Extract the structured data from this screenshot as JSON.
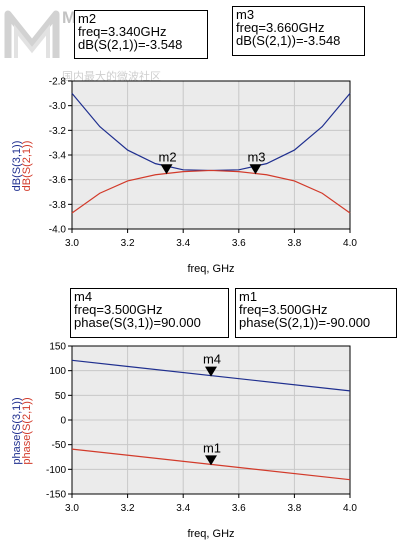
{
  "watermark": {
    "brand": "MicroNet",
    "subtitle": "国内最大的微波社区"
  },
  "markers": {
    "m2": {
      "name": "m2",
      "freq": "freq=3.340GHz",
      "meas": "dB(S(2,1))=-3.548"
    },
    "m3": {
      "name": "m3",
      "freq": "freq=3.660GHz",
      "meas": "dB(S(2,1))=-3.548"
    },
    "m4": {
      "name": "m4",
      "freq": "freq=3.500GHz",
      "meas": "phase(S(3,1))=90.000"
    },
    "m1": {
      "name": "m1",
      "freq": "freq=3.500GHz",
      "meas": "phase(S(2,1))=-90.000"
    }
  },
  "colors": {
    "s31": "#1f2f8f",
    "s21": "#d23a2a",
    "grid": "#c8c8c8",
    "plot_bg": "#ebebeb"
  },
  "chart_data": [
    {
      "type": "line",
      "xlabel": "freq, GHz",
      "ylabel_series": [
        "dB(S(3,1))",
        "dB(S(2,1))"
      ],
      "xlim": [
        3.0,
        4.0
      ],
      "ylim": [
        -4.0,
        -2.8
      ],
      "x_ticks": [
        3.0,
        3.2,
        3.4,
        3.6,
        3.8,
        4.0
      ],
      "x_tick_labels": [
        "3.0",
        "3.2",
        "3.4",
        "3.6",
        "3.8",
        "4.0"
      ],
      "y_ticks": [
        -4.0,
        -3.8,
        -3.6,
        -3.4,
        -3.2,
        -3.0,
        -2.8
      ],
      "y_tick_labels": [
        "-4.0",
        "-3.8",
        "-3.6",
        "-3.4",
        "-3.2",
        "-3.0",
        "-2.8"
      ],
      "grid": true,
      "series": [
        {
          "name": "dB(S(3,1))",
          "color": "#1f2f8f",
          "x": [
            3.0,
            3.1,
            3.2,
            3.3,
            3.4,
            3.5,
            3.6,
            3.7,
            3.8,
            3.9,
            4.0
          ],
          "y": [
            -2.9,
            -3.17,
            -3.36,
            -3.47,
            -3.52,
            -3.525,
            -3.52,
            -3.47,
            -3.36,
            -3.17,
            -2.9
          ]
        },
        {
          "name": "dB(S(2,1))",
          "color": "#d23a2a",
          "x": [
            3.0,
            3.1,
            3.2,
            3.3,
            3.4,
            3.5,
            3.6,
            3.7,
            3.8,
            3.9,
            4.0
          ],
          "y": [
            -3.87,
            -3.71,
            -3.61,
            -3.56,
            -3.535,
            -3.525,
            -3.535,
            -3.56,
            -3.61,
            -3.71,
            -3.87
          ]
        }
      ],
      "markers": [
        {
          "name": "m2",
          "x": 3.34,
          "y": -3.548
        },
        {
          "name": "m3",
          "x": 3.66,
          "y": -3.548
        }
      ]
    },
    {
      "type": "line",
      "xlabel": "freq, GHz",
      "ylabel_series": [
        "phase(S(3,1))",
        "phase(S(2,1))"
      ],
      "xlim": [
        3.0,
        4.0
      ],
      "ylim": [
        -150,
        150
      ],
      "x_ticks": [
        3.0,
        3.2,
        3.4,
        3.6,
        3.8,
        4.0
      ],
      "x_tick_labels": [
        "3.0",
        "3.2",
        "3.4",
        "3.6",
        "3.8",
        "4.0"
      ],
      "y_ticks": [
        -150,
        -100,
        -50,
        0,
        50,
        100,
        150
      ],
      "y_tick_labels": [
        "-150",
        "-100",
        "-50",
        "0",
        "50",
        "100",
        "150"
      ],
      "grid": true,
      "series": [
        {
          "name": "phase(S(3,1))",
          "color": "#1f2f8f",
          "x": [
            3.0,
            4.0
          ],
          "y": [
            121,
            59
          ]
        },
        {
          "name": "phase(S(2,1))",
          "color": "#d23a2a",
          "x": [
            3.0,
            4.0
          ],
          "y": [
            -59,
            -121
          ]
        }
      ],
      "markers": [
        {
          "name": "m4",
          "x": 3.5,
          "y": 90
        },
        {
          "name": "m1",
          "x": 3.5,
          "y": -90
        }
      ]
    }
  ]
}
